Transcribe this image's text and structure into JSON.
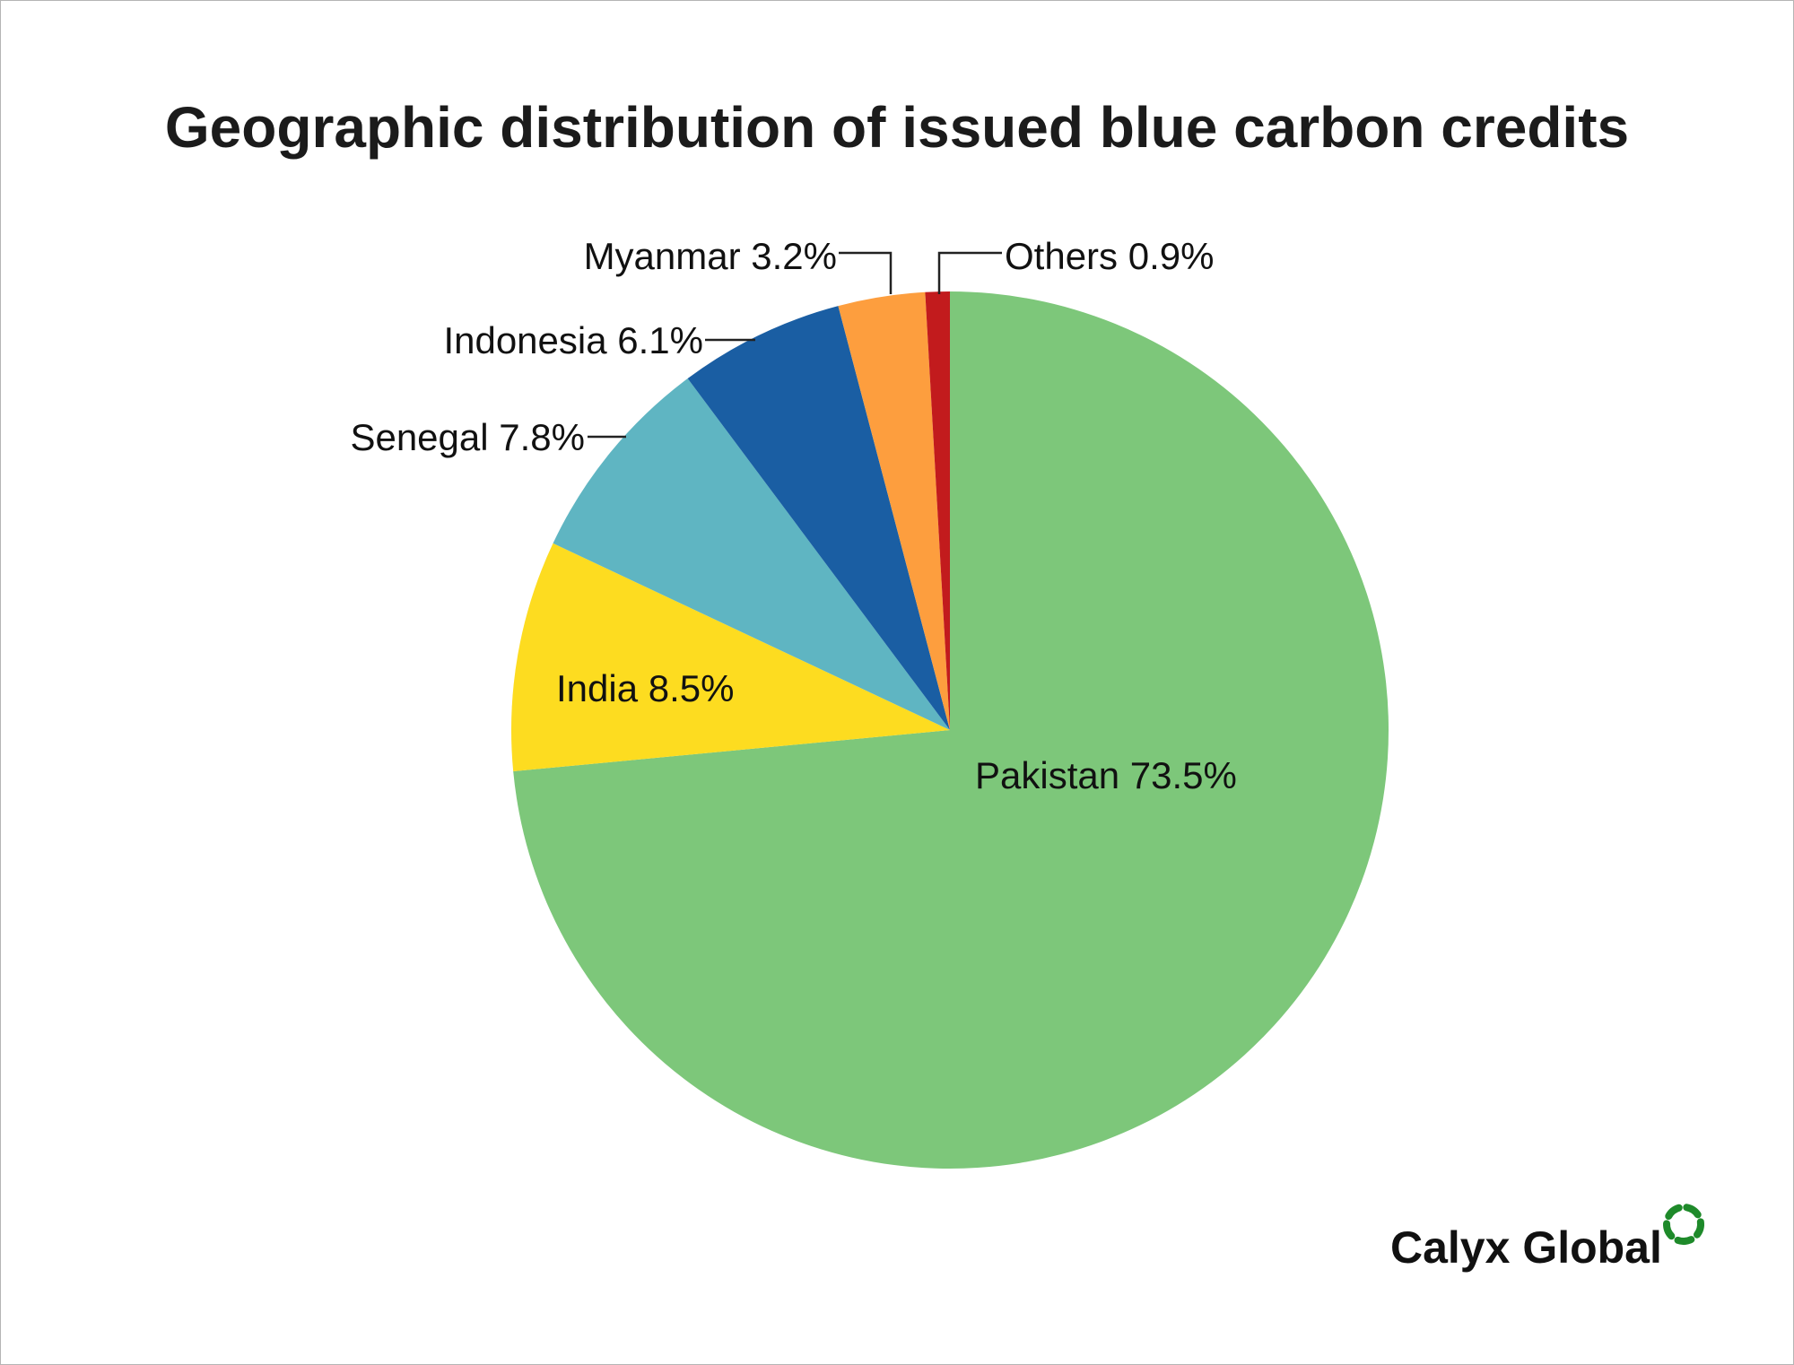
{
  "chart_data": {
    "type": "pie",
    "title": "Geographic distribution of issued blue carbon credits",
    "start_angle": "12 o'clock",
    "direction": "clockwise",
    "slices": [
      {
        "label": "Pakistan",
        "value": 73.5,
        "display": "Pakistan 73.5%",
        "color": "#7dc77a"
      },
      {
        "label": "India",
        "value": 8.5,
        "display": "India 8.5%",
        "color": "#fddc20"
      },
      {
        "label": "Senegal",
        "value": 7.8,
        "display": "Senegal 7.8%",
        "color": "#5fb5c2"
      },
      {
        "label": "Indonesia",
        "value": 6.1,
        "display": "Indonesia 6.1%",
        "color": "#1a5ea3"
      },
      {
        "label": "Myanmar",
        "value": 3.2,
        "display": "Myanmar 3.2%",
        "color": "#fd9e3e"
      },
      {
        "label": "Others",
        "value": 0.9,
        "display": "Others 0.9%",
        "color": "#c21b1d"
      }
    ]
  },
  "brand": {
    "name": "Calyx Global",
    "color": "#1e8a2a"
  }
}
